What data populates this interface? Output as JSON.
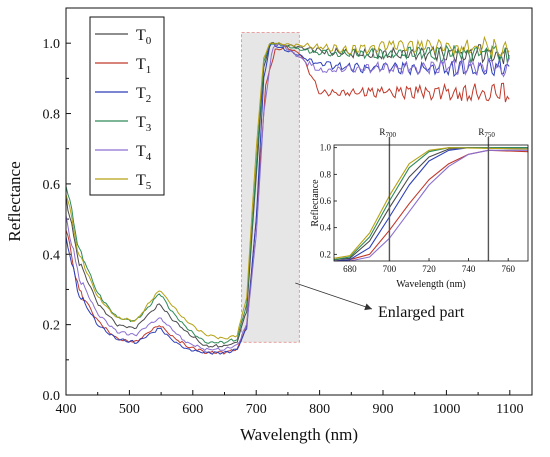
{
  "chart_data": [
    {
      "type": "line",
      "xlabel": "Wavelength (nm)",
      "ylabel": "Reflectance",
      "xlim": [
        400,
        1135
      ],
      "ylim": [
        0.0,
        1.1
      ],
      "xticks": [
        400,
        500,
        600,
        700,
        800,
        900,
        1000,
        1100
      ],
      "yticks": [
        0.0,
        0.2,
        0.4,
        0.6,
        0.8,
        1.0
      ],
      "legend": {
        "placement": "top-left",
        "entries": [
          "T0",
          "T1",
          "T2",
          "T3",
          "T4",
          "T5"
        ]
      },
      "highlight_region": {
        "x_range": [
          677,
          768
        ],
        "y_range": [
          0.15,
          1.03
        ]
      },
      "annotation": "Enlarged part",
      "colors": [
        "#4a4a4a",
        "#c0392b",
        "#2c3fb8",
        "#2e8b57",
        "#8a6fd1",
        "#b5a216"
      ],
      "series": [
        {
          "name": "T0",
          "color": "#4a4a4a",
          "points": [
            [
              400,
              0.56
            ],
            [
              420,
              0.38
            ],
            [
              450,
              0.26
            ],
            [
              480,
              0.2
            ],
            [
              510,
              0.19
            ],
            [
              530,
              0.23
            ],
            [
              548,
              0.26
            ],
            [
              565,
              0.22
            ],
            [
              590,
              0.18
            ],
            [
              620,
              0.14
            ],
            [
              650,
              0.14
            ],
            [
              670,
              0.15
            ],
            [
              685,
              0.24
            ],
            [
              700,
              0.62
            ],
            [
              712,
              0.93
            ],
            [
              722,
              1.0
            ],
            [
              800,
              0.98
            ],
            [
              850,
              0.97
            ],
            [
              900,
              0.97
            ],
            [
              950,
              0.97
            ],
            [
              1000,
              0.97
            ],
            [
              1050,
              0.97
            ],
            [
              1100,
              0.97
            ]
          ]
        },
        {
          "name": "T1",
          "color": "#c0392b",
          "points": [
            [
              400,
              0.47
            ],
            [
              420,
              0.3
            ],
            [
              450,
              0.21
            ],
            [
              480,
              0.16
            ],
            [
              510,
              0.15
            ],
            [
              530,
              0.18
            ],
            [
              548,
              0.2
            ],
            [
              565,
              0.17
            ],
            [
              590,
              0.14
            ],
            [
              620,
              0.12
            ],
            [
              650,
              0.12
            ],
            [
              670,
              0.13
            ],
            [
              685,
              0.2
            ],
            [
              700,
              0.5
            ],
            [
              715,
              0.88
            ],
            [
              730,
              0.98
            ],
            [
              745,
              0.99
            ],
            [
              770,
              0.97
            ],
            [
              800,
              0.86
            ],
            [
              850,
              0.86
            ],
            [
              900,
              0.86
            ],
            [
              950,
              0.86
            ],
            [
              1000,
              0.86
            ],
            [
              1050,
              0.86
            ],
            [
              1100,
              0.86
            ]
          ]
        },
        {
          "name": "T2",
          "color": "#2c3fb8",
          "points": [
            [
              400,
              0.45
            ],
            [
              420,
              0.29
            ],
            [
              450,
              0.2
            ],
            [
              480,
              0.16
            ],
            [
              510,
              0.15
            ],
            [
              530,
              0.17
            ],
            [
              548,
              0.19
            ],
            [
              565,
              0.16
            ],
            [
              590,
              0.13
            ],
            [
              620,
              0.12
            ],
            [
              650,
              0.12
            ],
            [
              670,
              0.13
            ],
            [
              685,
              0.19
            ],
            [
              700,
              0.5
            ],
            [
              712,
              0.9
            ],
            [
              722,
              1.0
            ],
            [
              800,
              0.94
            ],
            [
              850,
              0.93
            ],
            [
              900,
              0.93
            ],
            [
              950,
              0.93
            ],
            [
              1000,
              0.93
            ],
            [
              1050,
              0.93
            ],
            [
              1100,
              0.93
            ]
          ]
        },
        {
          "name": "T3",
          "color": "#2e8b57",
          "points": [
            [
              400,
              0.6
            ],
            [
              420,
              0.42
            ],
            [
              450,
              0.29
            ],
            [
              480,
              0.22
            ],
            [
              510,
              0.21
            ],
            [
              530,
              0.25
            ],
            [
              548,
              0.29
            ],
            [
              565,
              0.24
            ],
            [
              590,
              0.19
            ],
            [
              620,
              0.15
            ],
            [
              650,
              0.15
            ],
            [
              670,
              0.16
            ],
            [
              685,
              0.26
            ],
            [
              700,
              0.65
            ],
            [
              712,
              0.95
            ],
            [
              722,
              1.0
            ],
            [
              800,
              0.97
            ],
            [
              850,
              0.97
            ],
            [
              900,
              0.97
            ],
            [
              950,
              0.97
            ],
            [
              1000,
              0.97
            ],
            [
              1050,
              0.97
            ],
            [
              1100,
              0.97
            ]
          ]
        },
        {
          "name": "T4",
          "color": "#8a6fd1",
          "points": [
            [
              400,
              0.5
            ],
            [
              420,
              0.34
            ],
            [
              450,
              0.23
            ],
            [
              480,
              0.18
            ],
            [
              510,
              0.17
            ],
            [
              530,
              0.2
            ],
            [
              548,
              0.22
            ],
            [
              565,
              0.19
            ],
            [
              590,
              0.15
            ],
            [
              620,
              0.13
            ],
            [
              650,
              0.13
            ],
            [
              670,
              0.14
            ],
            [
              685,
              0.2
            ],
            [
              700,
              0.45
            ],
            [
              712,
              0.8
            ],
            [
              725,
              0.98
            ],
            [
              735,
              1.0
            ],
            [
              800,
              0.92
            ],
            [
              850,
              0.93
            ],
            [
              900,
              0.93
            ],
            [
              950,
              0.93
            ],
            [
              1000,
              0.93
            ],
            [
              1050,
              0.93
            ],
            [
              1100,
              0.93
            ]
          ]
        },
        {
          "name": "T5",
          "color": "#b5a216",
          "points": [
            [
              400,
              0.58
            ],
            [
              420,
              0.4
            ],
            [
              450,
              0.28
            ],
            [
              480,
              0.22
            ],
            [
              510,
              0.21
            ],
            [
              530,
              0.26
            ],
            [
              548,
              0.3
            ],
            [
              565,
              0.26
            ],
            [
              590,
              0.21
            ],
            [
              620,
              0.17
            ],
            [
              650,
              0.16
            ],
            [
              670,
              0.17
            ],
            [
              685,
              0.28
            ],
            [
              700,
              0.7
            ],
            [
              712,
              0.96
            ],
            [
              722,
              1.0
            ],
            [
              800,
              0.99
            ],
            [
              850,
              0.98
            ],
            [
              900,
              0.99
            ],
            [
              950,
              0.99
            ],
            [
              1000,
              0.99
            ],
            [
              1050,
              0.99
            ],
            [
              1100,
              0.99
            ]
          ]
        }
      ]
    },
    {
      "type": "line",
      "xlabel": "Wavelength (nm)",
      "ylabel": "Reflectance",
      "xlim": [
        672,
        770
      ],
      "ylim": [
        0.15,
        1.02
      ],
      "xticks": [
        680,
        700,
        720,
        740,
        760
      ],
      "yticks": [
        0.2,
        0.4,
        0.6,
        0.8,
        1.0
      ],
      "vlines": [
        {
          "x": 700,
          "label": "R",
          "sub": "700"
        },
        {
          "x": 750,
          "label": "R",
          "sub": "750"
        }
      ],
      "series": [
        {
          "color": "#4a4a4a",
          "points": [
            [
              672,
              0.16
            ],
            [
              680,
              0.17
            ],
            [
              690,
              0.3
            ],
            [
              700,
              0.55
            ],
            [
              710,
              0.78
            ],
            [
              720,
              0.93
            ],
            [
              730,
              0.99
            ],
            [
              740,
              1.0
            ],
            [
              770,
              0.99
            ]
          ]
        },
        {
          "color": "#c0392b",
          "points": [
            [
              672,
              0.15
            ],
            [
              680,
              0.16
            ],
            [
              690,
              0.2
            ],
            [
              700,
              0.38
            ],
            [
              710,
              0.58
            ],
            [
              720,
              0.76
            ],
            [
              730,
              0.88
            ],
            [
              740,
              0.95
            ],
            [
              750,
              0.98
            ],
            [
              770,
              0.97
            ]
          ]
        },
        {
          "color": "#2c3fb8",
          "points": [
            [
              672,
              0.15
            ],
            [
              680,
              0.16
            ],
            [
              690,
              0.25
            ],
            [
              700,
              0.48
            ],
            [
              710,
              0.72
            ],
            [
              720,
              0.9
            ],
            [
              730,
              0.98
            ],
            [
              740,
              1.0
            ],
            [
              770,
              1.0
            ]
          ]
        },
        {
          "color": "#2e8b57",
          "points": [
            [
              672,
              0.16
            ],
            [
              680,
              0.18
            ],
            [
              690,
              0.33
            ],
            [
              700,
              0.6
            ],
            [
              710,
              0.85
            ],
            [
              720,
              0.97
            ],
            [
              730,
              1.0
            ],
            [
              770,
              1.0
            ]
          ]
        },
        {
          "color": "#8a6fd1",
          "points": [
            [
              672,
              0.15
            ],
            [
              680,
              0.15
            ],
            [
              690,
              0.18
            ],
            [
              700,
              0.32
            ],
            [
              710,
              0.52
            ],
            [
              720,
              0.72
            ],
            [
              730,
              0.86
            ],
            [
              740,
              0.95
            ],
            [
              750,
              0.98
            ],
            [
              770,
              0.98
            ]
          ]
        },
        {
          "color": "#b5a216",
          "points": [
            [
              672,
              0.17
            ],
            [
              680,
              0.19
            ],
            [
              690,
              0.36
            ],
            [
              700,
              0.64
            ],
            [
              710,
              0.88
            ],
            [
              720,
              0.98
            ],
            [
              730,
              1.0
            ],
            [
              770,
              0.99
            ]
          ]
        }
      ]
    }
  ]
}
